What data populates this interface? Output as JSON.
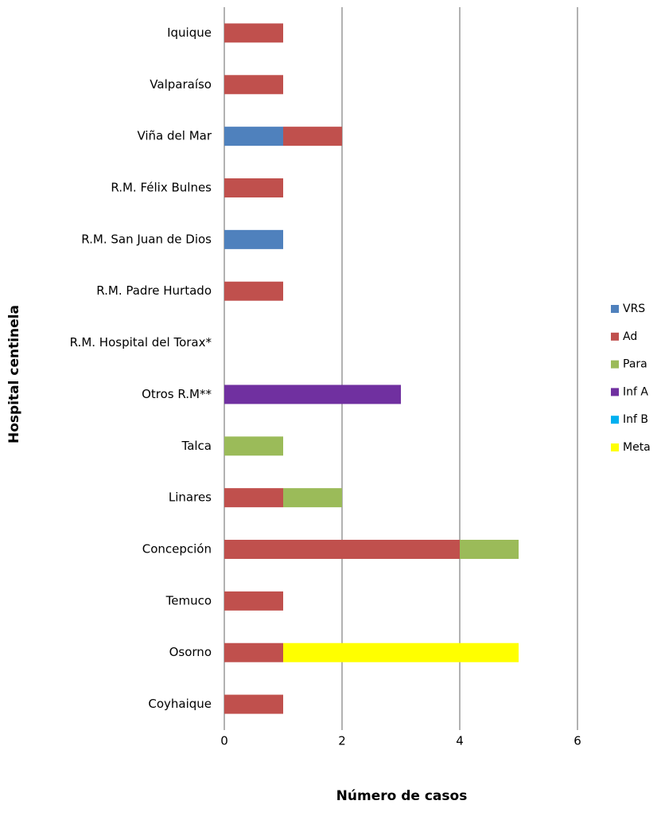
{
  "chart_data": {
    "type": "stacked-bar-horizontal",
    "xlabel": "Número de casos",
    "ylabel": "Hospital  centinela",
    "categories": [
      "Iquique",
      "Valparaíso",
      "Viña del Mar",
      "R.M. Félix Bulnes",
      "R.M. San Juan de Dios",
      "R.M. Padre Hurtado",
      "R.M. Hospital del Torax*",
      "Otros R.M**",
      "Talca",
      "Linares",
      "Concepción",
      "Temuco",
      "Osorno",
      "Coyhaique"
    ],
    "series": [
      {
        "name": "VRS",
        "color": "#4f81bd",
        "values": [
          0,
          0,
          1,
          0,
          1,
          0,
          0,
          0,
          0,
          0,
          0,
          0,
          0,
          0
        ]
      },
      {
        "name": "Ad",
        "color": "#c0504d",
        "values": [
          1,
          1,
          1,
          1,
          0,
          1,
          0,
          0,
          0,
          1,
          4,
          1,
          1,
          1
        ]
      },
      {
        "name": "Para",
        "color": "#9bbb59",
        "values": [
          0,
          0,
          0,
          0,
          0,
          0,
          0,
          0,
          1,
          1,
          1,
          0,
          0,
          0
        ]
      },
      {
        "name": "Inf A",
        "color": "#7030a0",
        "values": [
          0,
          0,
          0,
          0,
          0,
          0,
          0,
          3,
          0,
          0,
          0,
          0,
          0,
          0
        ]
      },
      {
        "name": "Inf B",
        "color": "#00b0f0",
        "values": [
          0,
          0,
          0,
          0,
          0,
          0,
          0,
          0,
          0,
          0,
          0,
          0,
          0,
          0
        ]
      },
      {
        "name": "Meta",
        "color": "#ffff00",
        "values": [
          0,
          0,
          0,
          0,
          0,
          0,
          0,
          0,
          0,
          0,
          0,
          0,
          4,
          0
        ]
      }
    ],
    "xlim": [
      0,
      6
    ],
    "xticks": [
      0,
      2,
      4,
      6
    ],
    "grid": true,
    "legend": "right"
  }
}
